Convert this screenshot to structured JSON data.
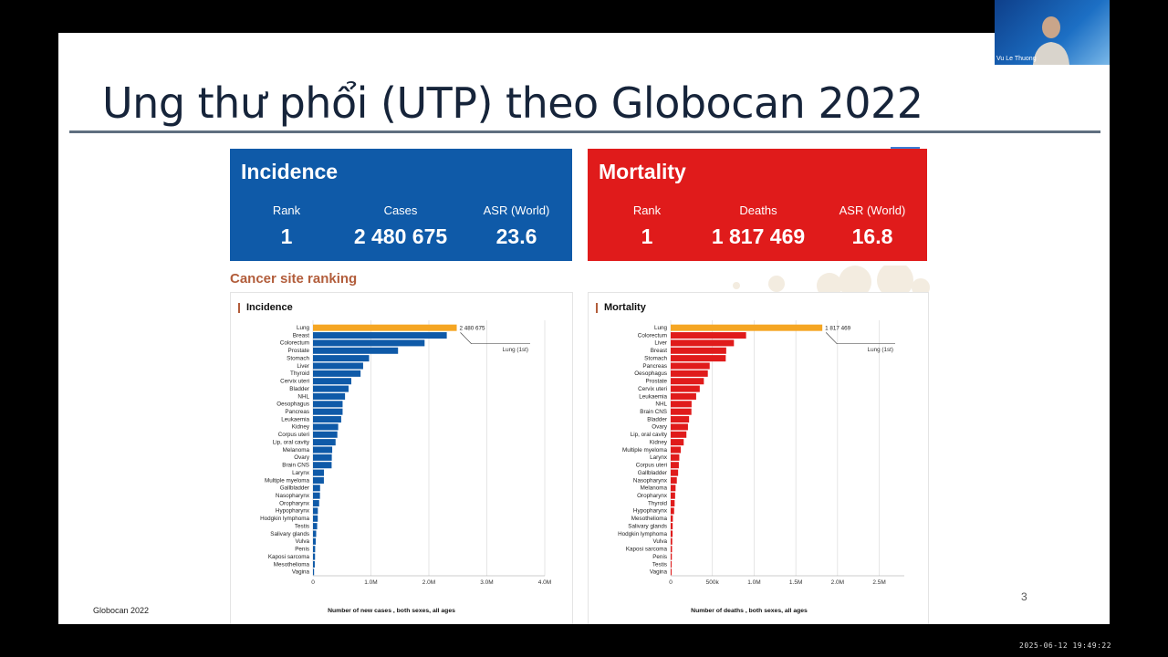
{
  "slide": {
    "title": "Ung thư phổi (UTP) theo Globocan 2022",
    "footer": "Globocan 2022",
    "page_number": "3",
    "ranking_title": "Cancer site ranking"
  },
  "incidence": {
    "title": "Incidence",
    "rank_label": "Rank",
    "rank_value": "1",
    "count_label": "Cases",
    "count_value": "2 480 675",
    "asr_label": "ASR (World)",
    "asr_value": "23.6",
    "color": "#0f5aa8"
  },
  "mortality": {
    "title": "Mortality",
    "rank_label": "Rank",
    "rank_value": "1",
    "count_label": "Deaths",
    "count_value": "1 817 469",
    "asr_label": "ASR (World)",
    "asr_value": "16.8",
    "color": "#e01b1b"
  },
  "webcam": {
    "name": "Vu Le Thuong"
  },
  "timestamp": "2025-06-12 19:49:22",
  "chart_data": [
    {
      "type": "bar",
      "orientation": "horizontal",
      "title": "Incidence",
      "xlabel": "Number of new cases , both sexes, all ages",
      "xlim": [
        0,
        4000000
      ],
      "xticks": [
        0,
        1000000,
        2000000,
        3000000,
        4000000
      ],
      "xtick_labels": [
        "0",
        "1.0M",
        "2.0M",
        "3.0M",
        "4.0M"
      ],
      "grid": true,
      "highlight_color": "#f5a623",
      "bar_color": "#0f5aa8",
      "annotation": {
        "value_label": "2 480 675",
        "callout": "Lung (1st)"
      },
      "categories": [
        "Lung",
        "Breast",
        "Colorectum",
        "Prostate",
        "Stomach",
        "Liver",
        "Thyroid",
        "Cervix uteri",
        "Bladder",
        "NHL",
        "Oesophagus",
        "Pancreas",
        "Leukaemia",
        "Kidney",
        "Corpus uteri",
        "Lip, oral cavity",
        "Melanoma",
        "Ovary",
        "Brain CNS",
        "Larynx",
        "Multiple myeloma",
        "Gallbladder",
        "Nasopharynx",
        "Oropharynx",
        "Hypopharynx",
        "Hodgkin lymphoma",
        "Testis",
        "Salivary glands",
        "Vulva",
        "Penis",
        "Kaposi sarcoma",
        "Mesothelioma",
        "Vagina"
      ],
      "values": [
        2480675,
        2308897,
        1926118,
        1467854,
        968350,
        865269,
        821214,
        661021,
        613791,
        553010,
        511054,
        510992,
        486777,
        434840,
        420368,
        389846,
        331722,
        324603,
        321731,
        188960,
        187952,
        122491,
        120416,
        106316,
        84265,
        82469,
        72031,
        55083,
        47336,
        37700,
        35361,
        30618,
        18819
      ]
    },
    {
      "type": "bar",
      "orientation": "horizontal",
      "title": "Mortality",
      "xlabel": "Number of deaths , both sexes, all ages",
      "xlim": [
        0,
        2800000
      ],
      "xticks": [
        0,
        500000,
        1000000,
        1500000,
        2000000,
        2500000
      ],
      "xtick_labels": [
        "0",
        "500k",
        "1.0M",
        "1.5M",
        "2.0M",
        "2.5M"
      ],
      "grid": true,
      "highlight_color": "#f5a623",
      "bar_color": "#e01b1b",
      "annotation": {
        "value_label": "1 817 469",
        "callout": "Lung (1st)"
      },
      "categories": [
        "Lung",
        "Colorectum",
        "Liver",
        "Breast",
        "Stomach",
        "Pancreas",
        "Oesophagus",
        "Prostate",
        "Cervix uteri",
        "Leukaemia",
        "NHL",
        "Brain CNS",
        "Bladder",
        "Ovary",
        "Lip, oral cavity",
        "Kidney",
        "Multiple myeloma",
        "Larynx",
        "Corpus uteri",
        "Gallbladder",
        "Nasopharynx",
        "Melanoma",
        "Oropharynx",
        "Thyroid",
        "Hypopharynx",
        "Mesothelioma",
        "Salivary glands",
        "Hodgkin lymphoma",
        "Vulva",
        "Kaposi sarcoma",
        "Penis",
        "Testis",
        "Vagina"
      ],
      "values": [
        1817469,
        903859,
        757948,
        665684,
        659853,
        467409,
        445129,
        397430,
        348189,
        305405,
        250475,
        248500,
        220349,
        206956,
        188438,
        155953,
        121388,
        103359,
        97723,
        89055,
        73482,
        58645,
        53143,
        47485,
        41284,
        25998,
        23790,
        22733,
        18579,
        15917,
        13870,
        9056,
        8062
      ]
    }
  ]
}
